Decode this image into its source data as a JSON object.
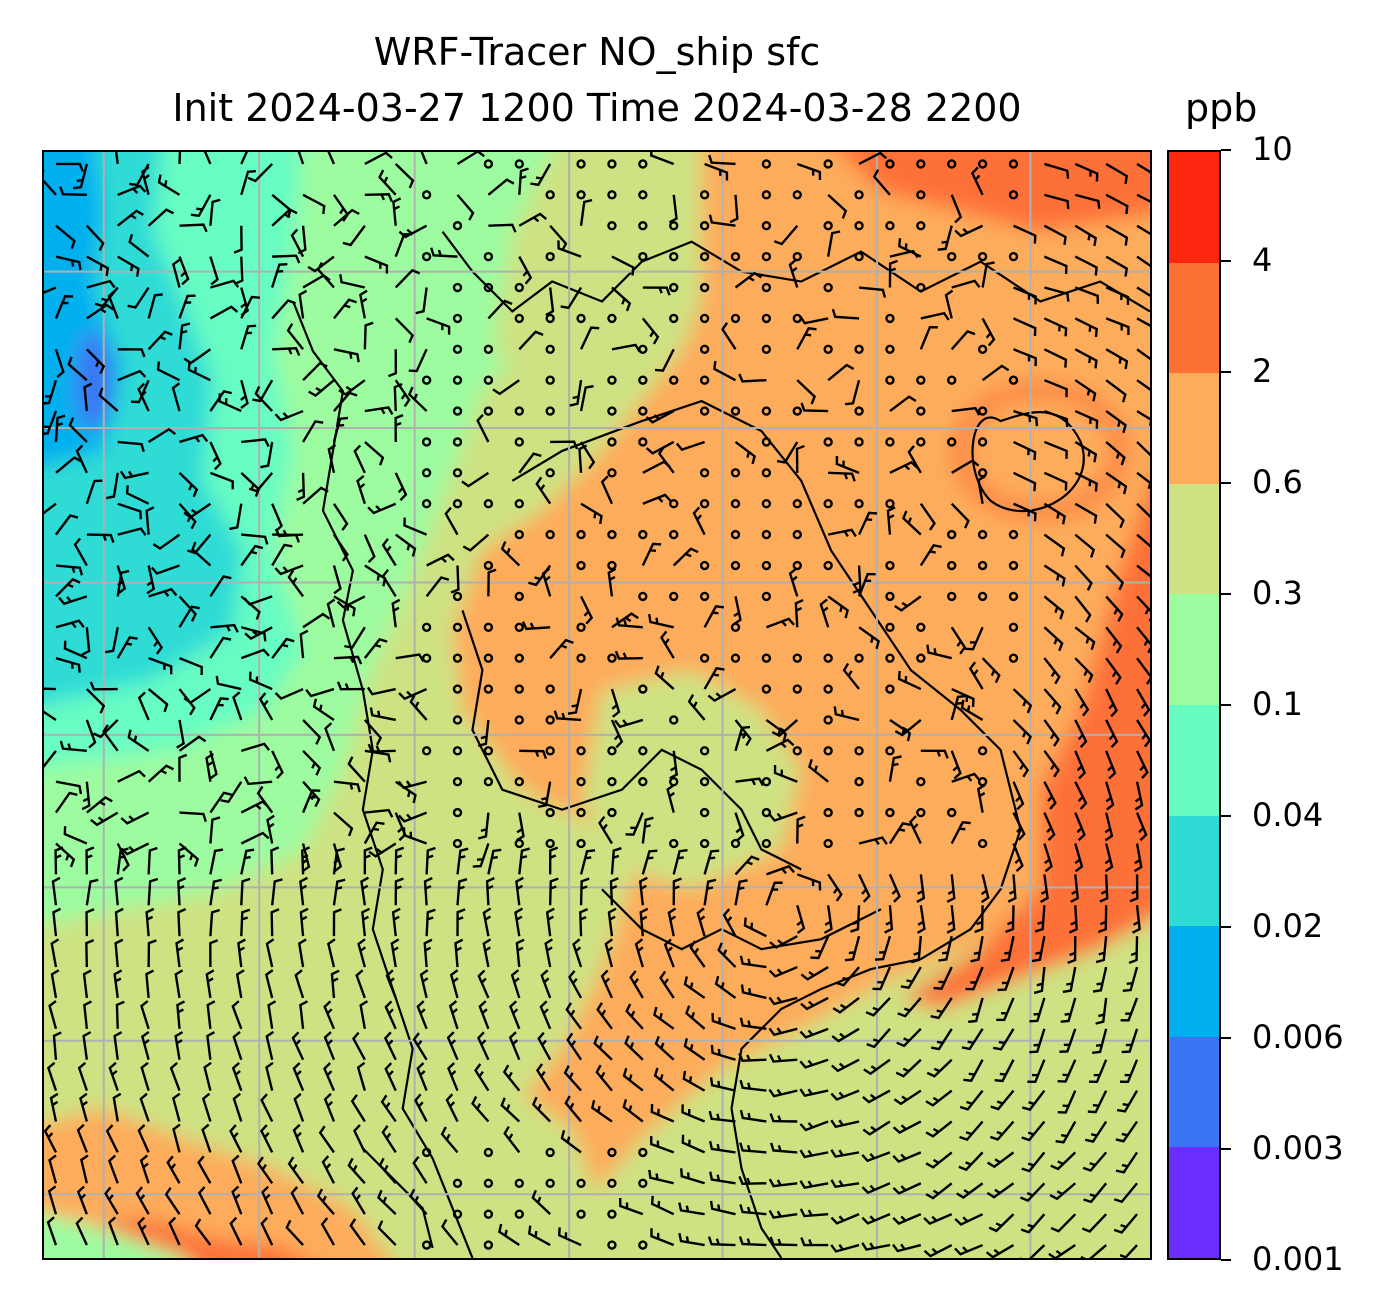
{
  "title": {
    "line1": "WRF-Tracer NO_ship sfc",
    "line2": "Init 2024-03-27 1200 Time 2024-03-28 2200"
  },
  "units": "ppb",
  "colorbar": {
    "levels": [
      "0.001",
      "0.003",
      "0.006",
      "0.02",
      "0.04",
      "0.1",
      "0.3",
      "0.6",
      "2",
      "4",
      "10"
    ],
    "colors": [
      "#6a2cff",
      "#3a75f5",
      "#00b0ee",
      "#2fdcd5",
      "#67fdc2",
      "#9dfca0",
      "#cde283",
      "#fdac5c",
      "#fd7137",
      "#fd2710"
    ]
  },
  "map": {
    "variable": "NO_ship",
    "level": "sfc",
    "overlays": [
      "wind-barbs",
      "coastlines",
      "lat-lon-grid"
    ],
    "gridline_color": "#b0b0b0"
  }
}
